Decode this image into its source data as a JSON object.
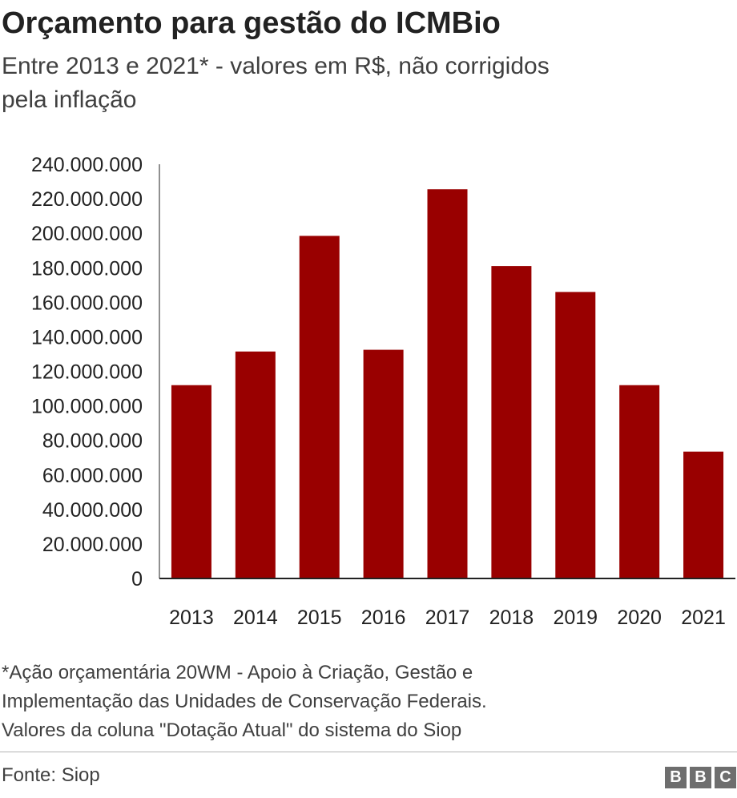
{
  "chart_data": {
    "type": "bar",
    "title": "Orçamento para gestão do ICMBio",
    "subtitle_lines": [
      "Entre 2013 e 2021* - valores em R$, não corrigidos",
      "pela inflação"
    ],
    "categories": [
      "2013",
      "2014",
      "2015",
      "2016",
      "2017",
      "2018",
      "2019",
      "2020",
      "2021"
    ],
    "values": [
      112000000,
      131500000,
      198500000,
      132500000,
      225500000,
      181000000,
      166000000,
      112000000,
      73500000
    ],
    "ylim": [
      0,
      240000000
    ],
    "yticks": [
      0,
      20000000,
      40000000,
      60000000,
      80000000,
      100000000,
      120000000,
      140000000,
      160000000,
      180000000,
      200000000,
      220000000,
      240000000
    ],
    "ytick_labels": [
      "0",
      "20.000.000",
      "40.000.000",
      "60.000.000",
      "80.000.000",
      "100.000.000",
      "120.000.000",
      "140.000.000",
      "160.000.000",
      "180.000.000",
      "200.000.000",
      "220.000.000",
      "240.000.000"
    ],
    "xlabel": "",
    "ylabel": "",
    "bar_color": "#990000",
    "grid": false,
    "legend": "none"
  },
  "footnote_lines": [
    "*Ação orçamentária 20WM - Apoio à Criação, Gestão e",
    "Implementação das Unidades de Conservação Federais.",
    "Valores da coluna \"Dotação Atual\" do sistema do Siop"
  ],
  "source": "Fonte: Siop",
  "logo": {
    "letters": [
      "B",
      "B",
      "C"
    ],
    "color": "#6e6e6e"
  }
}
